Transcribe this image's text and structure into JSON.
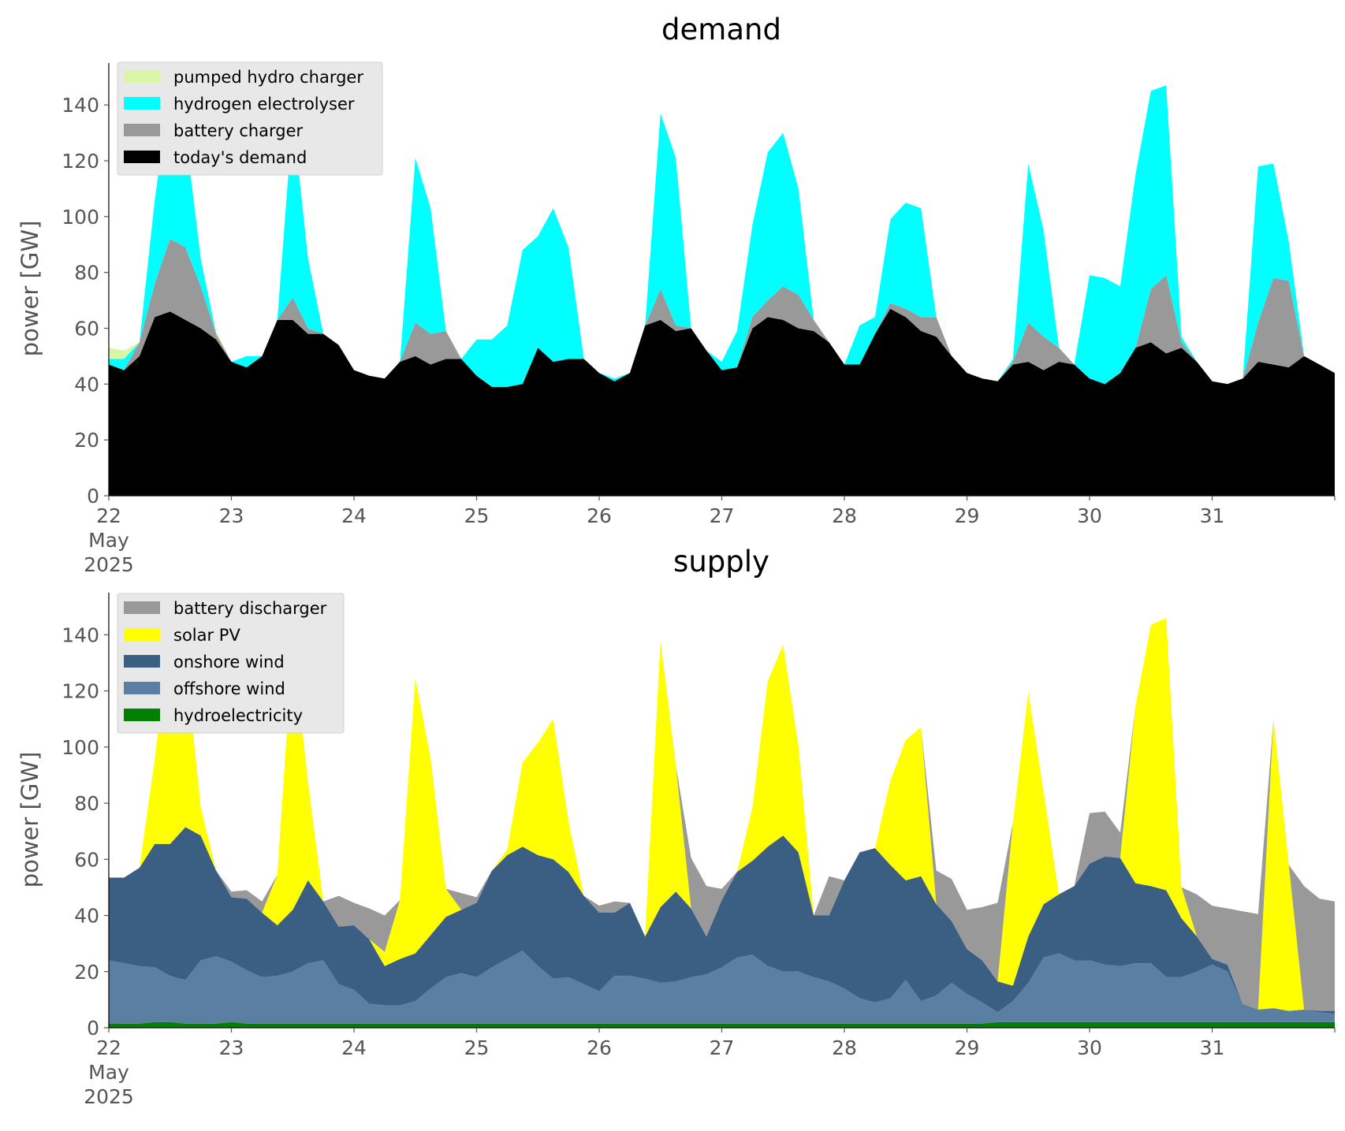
{
  "chart_data": [
    {
      "type": "area",
      "stacked": true,
      "title": "demand",
      "xlabel": "",
      "ylabel": "power [GW]",
      "ylim": [
        0,
        155
      ],
      "yticks": [
        0,
        20,
        40,
        60,
        80,
        100,
        120,
        140
      ],
      "xlim": [
        22.0,
        32.0
      ],
      "xticks": [
        {
          "value": 22,
          "label": "22",
          "sublabels": [
            "May",
            "2025"
          ]
        },
        {
          "value": 23,
          "label": "23"
        },
        {
          "value": 24,
          "label": "24"
        },
        {
          "value": 25,
          "label": "25"
        },
        {
          "value": 26,
          "label": "26"
        },
        {
          "value": 27,
          "label": "27"
        },
        {
          "value": 28,
          "label": "28"
        },
        {
          "value": 29,
          "label": "29"
        },
        {
          "value": 30,
          "label": "30"
        },
        {
          "value": 31,
          "label": "31"
        }
      ],
      "x_unit": "day of May 2025",
      "grid": false,
      "legend_position": "top-left",
      "legend": [
        "pumped hydro charger",
        "hydrogen electrolyser",
        "battery charger",
        "today's demand"
      ],
      "x": [
        22.0,
        22.125,
        22.25,
        22.375,
        22.5,
        22.625,
        22.75,
        22.875,
        23.0,
        23.125,
        23.25,
        23.375,
        23.5,
        23.625,
        23.75,
        23.875,
        24.0,
        24.125,
        24.25,
        24.375,
        24.5,
        24.625,
        24.75,
        24.875,
        25.0,
        25.125,
        25.25,
        25.375,
        25.5,
        25.625,
        25.75,
        25.875,
        26.0,
        26.125,
        26.25,
        26.375,
        26.5,
        26.625,
        26.75,
        26.875,
        27.0,
        27.125,
        27.25,
        27.375,
        27.5,
        27.625,
        27.75,
        27.875,
        28.0,
        28.125,
        28.25,
        28.375,
        28.5,
        28.625,
        28.75,
        28.875,
        29.0,
        29.125,
        29.25,
        29.375,
        29.5,
        29.625,
        29.75,
        29.875,
        30.0,
        30.125,
        30.25,
        30.375,
        30.5,
        30.625,
        30.75,
        30.875,
        31.0,
        31.125,
        31.25,
        31.375,
        31.5,
        31.625,
        31.75,
        31.875,
        32.0
      ],
      "series": [
        {
          "name": "today's demand",
          "color": "#000000",
          "values": [
            47,
            45,
            50,
            64,
            66,
            63,
            60,
            56,
            48,
            46,
            50,
            63,
            63,
            58,
            58,
            54,
            45,
            43,
            42,
            48,
            50,
            47,
            49,
            49,
            43,
            39,
            39,
            40,
            53,
            48,
            49,
            49,
            44,
            41,
            44,
            61,
            63,
            59,
            60,
            52,
            45,
            46,
            60,
            64,
            63,
            60,
            59,
            55,
            47,
            47,
            58,
            67,
            64,
            59,
            57,
            50,
            44,
            42,
            41,
            47,
            48,
            45,
            48,
            47,
            42,
            40,
            44,
            53,
            55,
            51,
            53,
            48,
            41,
            40,
            42,
            48,
            47,
            46,
            50,
            47,
            44
          ]
        },
        {
          "name": "battery charger",
          "color": "#999999",
          "values": [
            0,
            0,
            5,
            12,
            26,
            26,
            15,
            2,
            0,
            0,
            0,
            0,
            8,
            2,
            0,
            0,
            0,
            0,
            0,
            0,
            12,
            11,
            10,
            0,
            0,
            0,
            0,
            0,
            0,
            0,
            0,
            0,
            0,
            0,
            0,
            0,
            11,
            2,
            0,
            0,
            0,
            0,
            4,
            6,
            12,
            12,
            4,
            0,
            0,
            0,
            0,
            2,
            3,
            5,
            7,
            0,
            0,
            0,
            0,
            1,
            14,
            12,
            5,
            0,
            0,
            0,
            0,
            0,
            19,
            28,
            2,
            0,
            0,
            0,
            0,
            14,
            31,
            31,
            0,
            0,
            0
          ]
        },
        {
          "name": "hydrogen electrolyser",
          "color": "#00ffff",
          "values": [
            2,
            4,
            0,
            30,
            53,
            41,
            10,
            0,
            0,
            4,
            0,
            0,
            65,
            25,
            0,
            0,
            0,
            0,
            0,
            0,
            59,
            45,
            0,
            0,
            13,
            17,
            22,
            48,
            40,
            55,
            40,
            0,
            0,
            1,
            0,
            0,
            63,
            60,
            0,
            0,
            3,
            13,
            33,
            53,
            55,
            38,
            0,
            0,
            0,
            14,
            6,
            30,
            38,
            39,
            0,
            0,
            0,
            0,
            0,
            1,
            57,
            38,
            0,
            0,
            37,
            38,
            31,
            62,
            71,
            68,
            2,
            0,
            0,
            0,
            0,
            56,
            41,
            14,
            0,
            0,
            0
          ]
        },
        {
          "name": "pumped hydro charger",
          "color": "#d9f5a6",
          "values": [
            4,
            3,
            0,
            0,
            0,
            0,
            0,
            1,
            0,
            0,
            0,
            0,
            0,
            0,
            0,
            0,
            0,
            0,
            0,
            0,
            0,
            0,
            0,
            0,
            0,
            0,
            0,
            0,
            0,
            0,
            0,
            0,
            0,
            0,
            0,
            0,
            0,
            0,
            0,
            0,
            0,
            0,
            0,
            0,
            0,
            0,
            0,
            0,
            0,
            0,
            0,
            0,
            0,
            0,
            0,
            0,
            0,
            0,
            0,
            0,
            0,
            0,
            0,
            0,
            0,
            0,
            0,
            0,
            0,
            0,
            0,
            0,
            0,
            0,
            0,
            0,
            0,
            0,
            0,
            0,
            0
          ]
        }
      ]
    },
    {
      "type": "area",
      "stacked": true,
      "title": "supply",
      "xlabel": "",
      "ylabel": "power [GW]",
      "ylim": [
        0,
        155
      ],
      "yticks": [
        0,
        20,
        40,
        60,
        80,
        100,
        120,
        140
      ],
      "xlim": [
        22.0,
        32.0
      ],
      "xticks": [
        {
          "value": 22,
          "label": "22",
          "sublabels": [
            "May",
            "2025"
          ]
        },
        {
          "value": 23,
          "label": "23"
        },
        {
          "value": 24,
          "label": "24"
        },
        {
          "value": 25,
          "label": "25"
        },
        {
          "value": 26,
          "label": "26"
        },
        {
          "value": 27,
          "label": "27"
        },
        {
          "value": 28,
          "label": "28"
        },
        {
          "value": 29,
          "label": "29"
        },
        {
          "value": 30,
          "label": "30"
        },
        {
          "value": 31,
          "label": "31"
        }
      ],
      "x_unit": "day of May 2025",
      "grid": false,
      "legend_position": "top-left",
      "legend": [
        "battery discharger",
        "solar PV",
        "onshore wind",
        "offshore wind",
        "hydroelectricity"
      ],
      "x": [
        22.0,
        22.125,
        22.25,
        22.375,
        22.5,
        22.625,
        22.75,
        22.875,
        23.0,
        23.125,
        23.25,
        23.375,
        23.5,
        23.625,
        23.75,
        23.875,
        24.0,
        24.125,
        24.25,
        24.375,
        24.5,
        24.625,
        24.75,
        24.875,
        25.0,
        25.125,
        25.25,
        25.375,
        25.5,
        25.625,
        25.75,
        25.875,
        26.0,
        26.125,
        26.25,
        26.375,
        26.5,
        26.625,
        26.75,
        26.875,
        27.0,
        27.125,
        27.25,
        27.375,
        27.5,
        27.625,
        27.75,
        27.875,
        28.0,
        28.125,
        28.25,
        28.375,
        28.5,
        28.625,
        28.75,
        28.875,
        29.0,
        29.125,
        29.25,
        29.375,
        29.5,
        29.625,
        29.75,
        29.875,
        30.0,
        30.125,
        30.25,
        30.375,
        30.5,
        30.625,
        30.75,
        30.875,
        31.0,
        31.125,
        31.25,
        31.375,
        31.5,
        31.625,
        31.75,
        31.875,
        32.0
      ],
      "series": [
        {
          "name": "hydroelectricity",
          "color": "#008000",
          "values": [
            1.5,
            1.5,
            1.5,
            2,
            2,
            1.5,
            1.5,
            1.5,
            2,
            1.5,
            1.5,
            1.5,
            1.5,
            1.5,
            1.5,
            1.5,
            1.5,
            1.5,
            1.5,
            1.5,
            1.5,
            1.5,
            1.5,
            1.5,
            1.5,
            1.5,
            1.5,
            1.5,
            1.5,
            1.5,
            1.5,
            1.5,
            1.5,
            1.5,
            1.5,
            1.5,
            1.5,
            1.5,
            1.5,
            1.5,
            1.5,
            1.5,
            1.5,
            1.5,
            1.5,
            1.5,
            1.5,
            1.5,
            1.5,
            1.5,
            1.5,
            1.5,
            1.5,
            1.5,
            1.5,
            1.5,
            1.5,
            1.5,
            2,
            2,
            2,
            2,
            2,
            2,
            2,
            2,
            2,
            2,
            2,
            2,
            2,
            2,
            2,
            2,
            2,
            2,
            2,
            2,
            2,
            2,
            2
          ]
        },
        {
          "name": "offshore wind",
          "color": "#5b7fa3",
          "values": [
            22.5,
            21.5,
            20.5,
            19.5,
            16.5,
            15.5,
            22.5,
            24,
            21.5,
            19,
            16.5,
            17,
            18.5,
            21.5,
            22.5,
            14,
            12,
            7,
            6.5,
            6.5,
            8,
            12.5,
            16.5,
            18,
            16.5,
            20,
            23,
            26,
            20.5,
            16,
            16.5,
            14,
            11.5,
            17,
            17,
            16,
            14.5,
            15,
            16.5,
            17.5,
            20,
            23.5,
            24.5,
            20.5,
            18.5,
            18.5,
            16.5,
            15,
            12.5,
            9,
            7.5,
            9,
            15.5,
            8,
            10,
            14.5,
            10.5,
            7.5,
            3.5,
            7.5,
            14,
            23,
            24.5,
            22,
            22,
            20.5,
            20,
            21,
            21,
            16,
            16,
            18,
            20.5,
            18,
            6.5,
            4.5,
            5,
            4,
            4.5,
            3.5,
            3
          ]
        },
        {
          "name": "onshore wind",
          "color": "#3b5f82",
          "values": [
            29.5,
            30.5,
            35,
            44,
            47,
            54.5,
            44.5,
            30.5,
            23,
            25.5,
            23,
            18,
            22,
            29.5,
            21,
            20.5,
            23,
            23,
            14,
            16.5,
            17,
            19,
            21.5,
            22.5,
            26.5,
            34.5,
            37,
            37,
            39.5,
            42.5,
            37.5,
            31.5,
            28,
            22.5,
            26,
            15,
            27,
            32,
            24.5,
            13.5,
            24,
            30.5,
            33.5,
            42.5,
            48.5,
            42.5,
            22,
            23.5,
            38.5,
            52,
            55,
            47.5,
            35.5,
            44.5,
            32.5,
            22,
            16,
            15,
            11,
            5.5,
            16.5,
            19,
            21,
            26.5,
            34.5,
            38.5,
            38.5,
            28.5,
            27.5,
            31,
            21,
            12.5,
            2,
            2.5,
            0,
            0,
            0,
            0,
            0,
            0.5,
            1
          ]
        },
        {
          "name": "solar PV",
          "color": "#ffff00",
          "values": [
            0,
            0,
            0,
            30,
            77,
            60,
            10,
            0,
            0,
            0,
            0,
            18,
            95,
            35,
            0,
            0,
            0,
            0,
            5,
            21,
            98,
            63,
            10,
            0,
            0,
            0,
            2,
            30,
            40,
            50,
            18,
            0,
            0,
            0,
            0,
            0,
            95,
            45,
            0,
            0,
            0,
            0,
            19,
            59,
            68,
            38,
            0,
            0,
            0,
            0,
            0,
            30,
            50,
            53,
            0,
            0,
            0,
            0,
            0,
            58,
            87,
            40,
            0,
            0,
            0,
            0,
            0,
            63,
            93,
            97,
            11,
            0,
            0,
            0,
            0,
            0,
            103,
            52,
            0,
            0,
            0
          ]
        },
        {
          "name": "battery discharger",
          "color": "#999999",
          "values": [
            0,
            0,
            0,
            0,
            0,
            0,
            0,
            0,
            2,
            3,
            4,
            0,
            0,
            0,
            0,
            11,
            8,
            11,
            13,
            0,
            0,
            0,
            0,
            6,
            2,
            0,
            0,
            0,
            0,
            0,
            0,
            0,
            2.5,
            4,
            0,
            0,
            0,
            0,
            18,
            18,
            4,
            0,
            0,
            0,
            0,
            0,
            0,
            14,
            0,
            0,
            0,
            0,
            0,
            0,
            12,
            15,
            14,
            19,
            28,
            0,
            0,
            0,
            0,
            0,
            18,
            16,
            9,
            0,
            0,
            0,
            0,
            15,
            19,
            20,
            33,
            34,
            0,
            0,
            44,
            40,
            39
          ]
        }
      ]
    }
  ]
}
